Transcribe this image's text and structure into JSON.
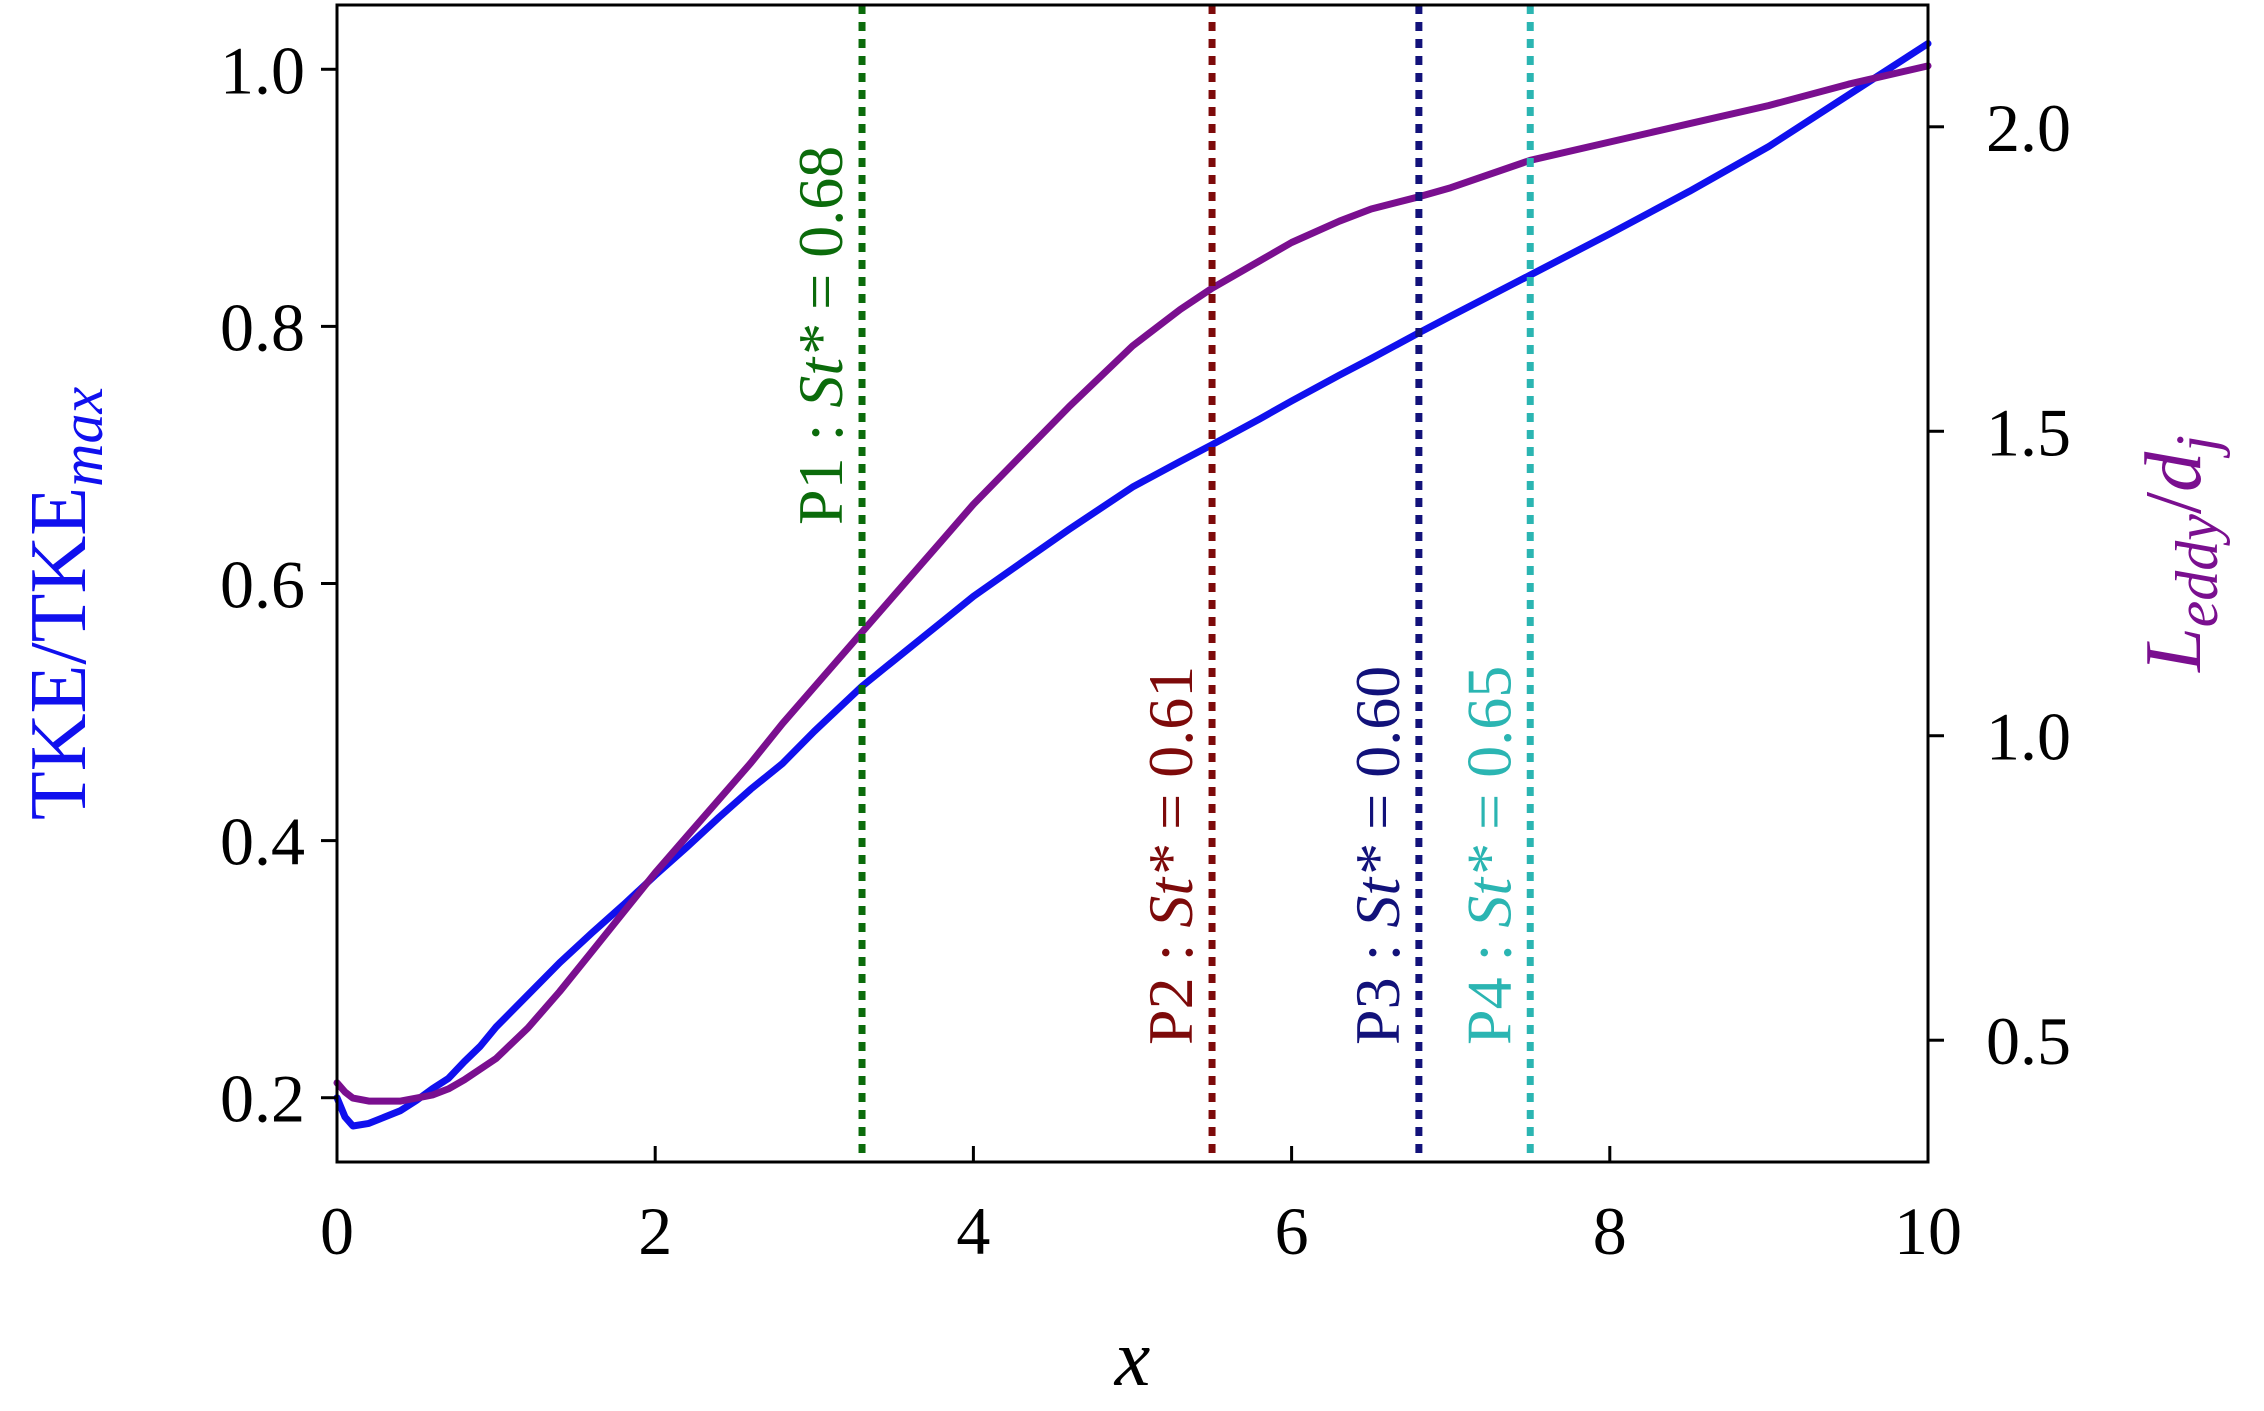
{
  "chart_data": {
    "type": "line",
    "title": "",
    "xlabel": "x",
    "ylabel_left": {
      "text": "TKE/TKE",
      "subscript": "max",
      "color": "#1010ee"
    },
    "ylabel_right": {
      "L": "L",
      "sub": "eddy",
      "slash": "/",
      "d": "d",
      "dsub": "j",
      "color": "#7a0f8f"
    },
    "xlim": [
      0,
      10
    ],
    "ylim_left": [
      0.15,
      1.05
    ],
    "ylim_right": [
      0.3,
      2.2
    ],
    "xticks": [
      0,
      2,
      4,
      6,
      8,
      10
    ],
    "xtick_labels": [
      "0",
      "2",
      "4",
      "6",
      "8",
      "10"
    ],
    "yticks_left": [
      0.2,
      0.4,
      0.6,
      0.8,
      1.0
    ],
    "ytick_labels_left": [
      "0.2",
      "0.4",
      "0.6",
      "0.8",
      "1.0"
    ],
    "yticks_right": [
      0.5,
      1.0,
      1.5,
      2.0
    ],
    "ytick_labels_right": [
      "0.5",
      "1.0",
      "1.5",
      "2.0"
    ],
    "grid": false,
    "series": [
      {
        "axis": "left",
        "color": "#1010ee",
        "x": [
          0,
          0.05,
          0.1,
          0.2,
          0.3,
          0.4,
          0.5,
          0.6,
          0.7,
          0.8,
          0.9,
          1.0,
          1.2,
          1.4,
          1.6,
          1.8,
          2.0,
          2.2,
          2.4,
          2.6,
          2.8,
          3.0,
          3.3,
          3.5,
          3.8,
          4.0,
          4.3,
          4.6,
          5.0,
          5.3,
          5.5,
          5.8,
          6.0,
          6.3,
          6.5,
          6.8,
          7.0,
          7.5,
          8.0,
          8.5,
          9.0,
          9.5,
          10.0
        ],
        "y": [
          0.2,
          0.185,
          0.178,
          0.18,
          0.185,
          0.19,
          0.198,
          0.207,
          0.215,
          0.228,
          0.24,
          0.255,
          0.28,
          0.305,
          0.328,
          0.35,
          0.373,
          0.395,
          0.418,
          0.44,
          0.46,
          0.485,
          0.52,
          0.54,
          0.57,
          0.59,
          0.616,
          0.642,
          0.675,
          0.695,
          0.708,
          0.728,
          0.742,
          0.762,
          0.775,
          0.795,
          0.808,
          0.84,
          0.872,
          0.905,
          0.94,
          0.98,
          1.02
        ]
      },
      {
        "axis": "right",
        "color": "#7a0f8f",
        "x": [
          0,
          0.05,
          0.1,
          0.2,
          0.3,
          0.4,
          0.5,
          0.6,
          0.7,
          0.8,
          1.0,
          1.2,
          1.4,
          1.6,
          1.8,
          2.0,
          2.2,
          2.4,
          2.6,
          2.8,
          3.0,
          3.3,
          3.5,
          3.8,
          4.0,
          4.3,
          4.6,
          5.0,
          5.3,
          5.5,
          5.8,
          6.0,
          6.3,
          6.5,
          6.8,
          7.0,
          7.5,
          8.0,
          8.5,
          9.0,
          9.5,
          10.0
        ],
        "y": [
          0.43,
          0.415,
          0.405,
          0.4,
          0.4,
          0.4,
          0.405,
          0.41,
          0.42,
          0.435,
          0.47,
          0.52,
          0.58,
          0.645,
          0.71,
          0.775,
          0.835,
          0.895,
          0.955,
          1.02,
          1.08,
          1.17,
          1.23,
          1.32,
          1.38,
          1.46,
          1.54,
          1.64,
          1.7,
          1.735,
          1.78,
          1.81,
          1.845,
          1.865,
          1.885,
          1.9,
          1.945,
          1.975,
          2.005,
          2.035,
          2.07,
          2.1
        ]
      }
    ],
    "vlines": [
      {
        "x": 3.3,
        "color": "#0b6b0b",
        "label_name": "P1",
        "label_sep": " : ",
        "label_var": "St*",
        "label_eq": " = 0.68"
      },
      {
        "x": 5.5,
        "color": "#7d0a0a",
        "label_name": "P2",
        "label_sep": " : ",
        "label_var": "St*",
        "label_eq": " = 0.61"
      },
      {
        "x": 6.8,
        "color": "#12127a",
        "label_name": "P3",
        "label_sep": " : ",
        "label_var": "St*",
        "label_eq": " = 0.60"
      },
      {
        "x": 7.5,
        "color": "#2bb5b2",
        "label_name": "P4",
        "label_sep": " : ",
        "label_var": "St*",
        "label_eq": " = 0.65"
      }
    ]
  }
}
